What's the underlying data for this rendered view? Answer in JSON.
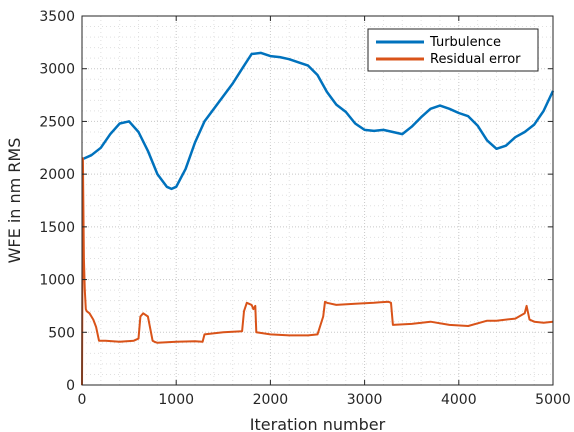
{
  "chart_data": {
    "type": "line",
    "xlabel": "Iteration number",
    "ylabel": "WFE in nm RMS",
    "xlim": [
      0,
      5000
    ],
    "ylim": [
      0,
      3500
    ],
    "xticks": [
      0,
      1000,
      2000,
      3000,
      4000,
      5000
    ],
    "yticks": [
      0,
      500,
      1000,
      1500,
      2000,
      2500,
      3000,
      3500
    ],
    "grid": "dotted, major and minor",
    "legend_position": "top-right",
    "series": [
      {
        "name": "Turbulence",
        "color": "#0072bd",
        "x": [
          0,
          100,
          200,
          300,
          400,
          500,
          600,
          700,
          800,
          900,
          950,
          1000,
          1100,
          1200,
          1300,
          1400,
          1500,
          1600,
          1700,
          1800,
          1900,
          2000,
          2100,
          2200,
          2300,
          2400,
          2500,
          2600,
          2700,
          2800,
          2900,
          3000,
          3100,
          3200,
          3300,
          3400,
          3500,
          3600,
          3700,
          3800,
          3900,
          4000,
          4100,
          4200,
          4300,
          4400,
          4500,
          4600,
          4700,
          4800,
          4900,
          5000
        ],
        "y": [
          2140,
          2180,
          2250,
          2380,
          2480,
          2500,
          2400,
          2220,
          2000,
          1880,
          1860,
          1880,
          2050,
          2300,
          2500,
          2620,
          2740,
          2860,
          3000,
          3140,
          3150,
          3120,
          3110,
          3090,
          3060,
          3030,
          2940,
          2780,
          2660,
          2590,
          2480,
          2420,
          2410,
          2420,
          2400,
          2380,
          2450,
          2540,
          2620,
          2650,
          2620,
          2580,
          2550,
          2460,
          2320,
          2240,
          2270,
          2350,
          2400,
          2470,
          2600,
          2790
        ]
      },
      {
        "name": "Residual error",
        "color": "#d95319",
        "x": [
          0,
          10,
          20,
          30,
          40,
          50,
          80,
          120,
          150,
          180,
          250,
          400,
          550,
          600,
          620,
          650,
          700,
          750,
          770,
          800,
          1000,
          1200,
          1280,
          1300,
          1500,
          1700,
          1720,
          1750,
          1800,
          1820,
          1840,
          1850,
          2000,
          2200,
          2400,
          2500,
          2560,
          2580,
          2600,
          2700,
          2900,
          3100,
          3250,
          3280,
          3300,
          3500,
          3700,
          3900,
          4100,
          4300,
          4400,
          4600,
          4700,
          4720,
          4750,
          4800,
          4900,
          5000
        ],
        "y": [
          0,
          2150,
          1200,
          900,
          720,
          700,
          680,
          620,
          550,
          420,
          420,
          410,
          420,
          440,
          650,
          680,
          650,
          420,
          410,
          400,
          410,
          415,
          410,
          480,
          500,
          510,
          700,
          780,
          760,
          720,
          750,
          500,
          480,
          470,
          470,
          480,
          650,
          790,
          780,
          760,
          770,
          780,
          790,
          780,
          570,
          580,
          600,
          570,
          560,
          610,
          610,
          630,
          680,
          750,
          620,
          600,
          590,
          600
        ]
      }
    ]
  }
}
